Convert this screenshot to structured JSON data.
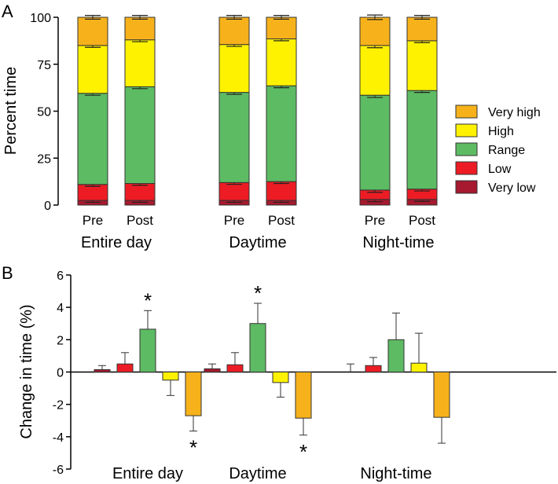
{
  "colors": {
    "very_high": "#F7B21B",
    "high": "#FFF200",
    "range": "#5DBB63",
    "low": "#ED1C24",
    "very_low": "#A6192E"
  },
  "chart_data": [
    {
      "panel": "A",
      "type": "bar",
      "stacked": true,
      "ylabel": "Percent time",
      "ylim": [
        0,
        100
      ],
      "yticks": [
        0,
        25,
        50,
        75,
        100
      ],
      "groups": [
        "Entire day",
        "Daytime",
        "Night-time"
      ],
      "subcategories": [
        "Pre",
        "Post"
      ],
      "categories": [
        "Entire day Pre",
        "Entire day Post",
        "Daytime Pre",
        "Daytime Post",
        "Night-time Pre",
        "Night-time Post"
      ],
      "legend_position": "right",
      "series": [
        {
          "name": "Very low",
          "color_key": "very_low",
          "values": [
            2.5,
            2.5,
            2.5,
            2.5,
            3.0,
            3.0
          ]
        },
        {
          "name": "Low",
          "color_key": "low",
          "values": [
            8.5,
            9.0,
            9.5,
            10.0,
            5.0,
            5.5
          ]
        },
        {
          "name": "Range",
          "color_key": "range",
          "values": [
            48.5,
            51.5,
            48.0,
            51.0,
            50.5,
            52.5
          ]
        },
        {
          "name": "High",
          "color_key": "high",
          "values": [
            25.5,
            25.0,
            25.5,
            25.0,
            26.5,
            26.5
          ]
        },
        {
          "name": "Very high",
          "color_key": "very_high",
          "values": [
            15.0,
            12.0,
            14.5,
            11.5,
            15.0,
            12.5
          ]
        }
      ],
      "boundary_errors": [
        1.0,
        1.0,
        1.0,
        1.0,
        1.2,
        1.0
      ],
      "legend_order": [
        "Very high",
        "High",
        "Range",
        "Low",
        "Very low"
      ]
    },
    {
      "panel": "B",
      "type": "bar",
      "ylabel": "Change in time (%)",
      "ylim": [
        -6,
        6
      ],
      "yticks": [
        -6,
        -4,
        -2,
        0,
        2,
        4,
        6
      ],
      "categories": [
        "Entire day",
        "Daytime",
        "Night-time"
      ],
      "series": [
        {
          "name": "Very low",
          "color_key": "very_low",
          "values": [
            0.15,
            0.2,
            0.0
          ],
          "errors": [
            0.25,
            0.3,
            0.5
          ],
          "significant": [
            false,
            false,
            false
          ]
        },
        {
          "name": "Low",
          "color_key": "low",
          "values": [
            0.5,
            0.45,
            0.4
          ],
          "errors": [
            0.7,
            0.75,
            0.5
          ],
          "significant": [
            false,
            false,
            false
          ]
        },
        {
          "name": "Range",
          "color_key": "range",
          "values": [
            2.65,
            3.0,
            2.0
          ],
          "errors": [
            1.15,
            1.25,
            1.65
          ],
          "significant": [
            true,
            true,
            false
          ]
        },
        {
          "name": "High",
          "color_key": "high",
          "values": [
            -0.5,
            -0.65,
            0.55
          ],
          "errors": [
            0.95,
            0.9,
            1.85
          ],
          "significant": [
            false,
            false,
            false
          ]
        },
        {
          "name": "Very high",
          "color_key": "very_high",
          "values": [
            -2.7,
            -2.85,
            -2.8
          ],
          "errors": [
            0.95,
            1.05,
            1.6
          ],
          "significant": [
            true,
            true,
            false
          ]
        }
      ],
      "significance_marker": "*"
    }
  ]
}
